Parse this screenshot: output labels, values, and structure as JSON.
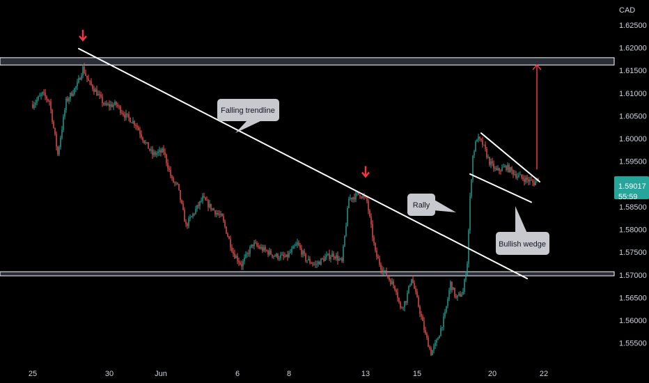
{
  "currency_label": "CAD",
  "price_badge": {
    "price": "1.59017",
    "countdown": "55:59",
    "color": "#26a69a"
  },
  "colors": {
    "bull": "#26a69a",
    "bear": "#ef5350",
    "arrow": "#f23645",
    "zone_fill": "#2a2e39",
    "zone_stroke": "#ffffff",
    "trendline": "#ffffff",
    "callout_bg": "#c7c9ce"
  },
  "annotations": {
    "falling_trendline": "Falling trendline",
    "rally": "Rally",
    "bullish_wedge": "Bullish wedge"
  },
  "chart_data": {
    "type": "candlestick",
    "symbol_currency": "CAD",
    "y_axis": {
      "position": "right",
      "ylim": [
        1.5505,
        1.6305
      ],
      "ticks": [
        "1.62500",
        "1.62000",
        "1.61500",
        "1.61000",
        "1.60500",
        "1.60000",
        "1.59500",
        "1.58500",
        "1.58000",
        "1.57500",
        "1.57000",
        "1.56500",
        "1.56000",
        "1.55500"
      ]
    },
    "x_axis": {
      "position": "bottom",
      "ticks": [
        {
          "label": "25",
          "t": 0
        },
        {
          "label": "30",
          "t": 55
        },
        {
          "label": "Jun",
          "t": 92
        },
        {
          "label": "6",
          "t": 147
        },
        {
          "label": "8",
          "t": 184
        },
        {
          "label": "13",
          "t": 239
        },
        {
          "label": "15",
          "t": 276
        },
        {
          "label": "20",
          "t": 330
        },
        {
          "label": "22",
          "t": 367
        }
      ]
    },
    "grid": false,
    "last_price": 1.59017,
    "candle_path": [
      [
        0,
        1.6075
      ],
      [
        7,
        1.6098
      ],
      [
        12,
        1.6082
      ],
      [
        18,
        1.5965
      ],
      [
        24,
        1.6082
      ],
      [
        32,
        1.6118
      ],
      [
        36,
        1.6155
      ],
      [
        40,
        1.6125
      ],
      [
        45,
        1.6105
      ],
      [
        52,
        1.6072
      ],
      [
        60,
        1.6075
      ],
      [
        66,
        1.6052
      ],
      [
        74,
        1.6032
      ],
      [
        80,
        1.5995
      ],
      [
        86,
        1.5965
      ],
      [
        94,
        1.5972
      ],
      [
        100,
        1.5908
      ],
      [
        104,
        1.5895
      ],
      [
        110,
        1.5808
      ],
      [
        118,
        1.5848
      ],
      [
        122,
        1.5868
      ],
      [
        128,
        1.5848
      ],
      [
        136,
        1.5825
      ],
      [
        144,
        1.5748
      ],
      [
        150,
        1.5722
      ],
      [
        158,
        1.5768
      ],
      [
        166,
        1.5755
      ],
      [
        174,
        1.5742
      ],
      [
        182,
        1.5738
      ],
      [
        190,
        1.5768
      ],
      [
        196,
        1.5735
      ],
      [
        203,
        1.5722
      ],
      [
        210,
        1.5738
      ],
      [
        216,
        1.5745
      ],
      [
        222,
        1.5728
      ],
      [
        227,
        1.5868
      ],
      [
        235,
        1.5878
      ],
      [
        240,
        1.5862
      ],
      [
        243,
        1.5805
      ],
      [
        246,
        1.5748
      ],
      [
        250,
        1.5718
      ],
      [
        255,
        1.5695
      ],
      [
        261,
        1.5668
      ],
      [
        264,
        1.5625
      ],
      [
        268,
        1.5645
      ],
      [
        272,
        1.5695
      ],
      [
        276,
        1.5645
      ],
      [
        282,
        1.5568
      ],
      [
        286,
        1.5528
      ],
      [
        290,
        1.5552
      ],
      [
        296,
        1.5612
      ],
      [
        300,
        1.5682
      ],
      [
        304,
        1.5648
      ],
      [
        309,
        1.5662
      ],
      [
        312,
        1.5728
      ],
      [
        314,
        1.5868
      ],
      [
        316,
        1.5962
      ],
      [
        319,
        1.6002
      ],
      [
        323,
        1.5988
      ],
      [
        328,
        1.5948
      ],
      [
        333,
        1.5928
      ],
      [
        340,
        1.5938
      ],
      [
        348,
        1.5918
      ],
      [
        356,
        1.5908
      ],
      [
        360,
        1.5902
      ],
      [
        363,
        1.5915
      ]
    ],
    "horizontal_zones": [
      {
        "y_low": 1.6162,
        "y_high": 1.6178
      },
      {
        "y_low": 1.5698,
        "y_high": 1.5707
      }
    ],
    "trendlines": [
      {
        "name": "Falling trendline",
        "from": [
          33,
          1.6198
        ],
        "to": [
          355,
          1.5692
        ]
      },
      {
        "name": "wedge-upper",
        "from": [
          322,
          1.6012
        ],
        "to": [
          364,
          1.5905
        ]
      },
      {
        "name": "wedge-lower",
        "from": [
          314,
          1.5922
        ],
        "to": [
          358,
          1.586
        ]
      }
    ],
    "markers": [
      {
        "type": "down-arrow",
        "t": 36,
        "y": 1.6218
      },
      {
        "type": "down-arrow",
        "t": 239,
        "y": 1.5918
      },
      {
        "type": "up-arrow",
        "from": [
          362,
          1.5932
        ],
        "to": [
          362,
          1.6162
        ]
      }
    ],
    "visible_x_range": [
      -4,
      410
    ]
  }
}
